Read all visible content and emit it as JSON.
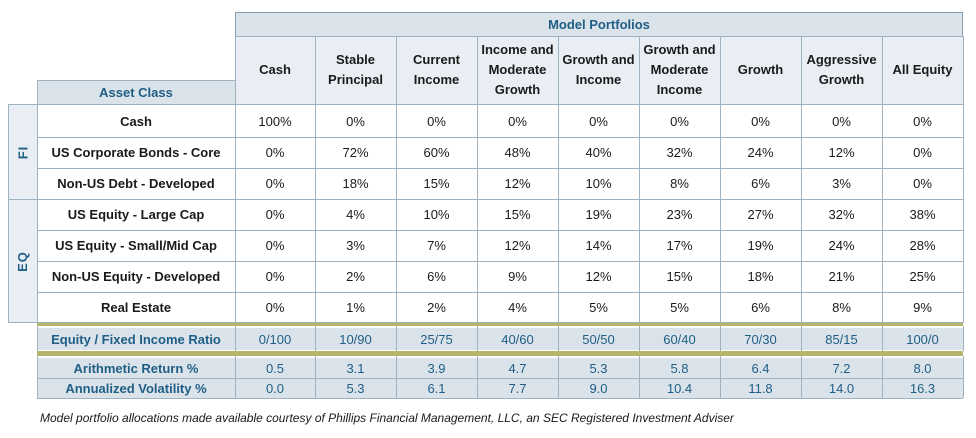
{
  "header": {
    "model_portfolios": "Model Portfolios",
    "asset_class": "Asset Class",
    "columns": [
      [
        "Cash"
      ],
      [
        "Stable",
        "Principal"
      ],
      [
        "Current",
        "Income"
      ],
      [
        "Income and",
        "Moderate",
        "Growth"
      ],
      [
        "Growth and",
        "Income"
      ],
      [
        "Growth and",
        "Moderate",
        "Income"
      ],
      [
        "Growth"
      ],
      [
        "Aggressive",
        "Growth"
      ],
      [
        "All Equity"
      ]
    ]
  },
  "groups": [
    {
      "label": "FI"
    },
    {
      "label": "EQ"
    }
  ],
  "rows": [
    {
      "label": "Cash",
      "values": [
        "100%",
        "0%",
        "0%",
        "0%",
        "0%",
        "0%",
        "0%",
        "0%",
        "0%"
      ]
    },
    {
      "label": "US Corporate Bonds - Core",
      "values": [
        "0%",
        "72%",
        "60%",
        "48%",
        "40%",
        "32%",
        "24%",
        "12%",
        "0%"
      ]
    },
    {
      "label": "Non-US Debt - Developed",
      "values": [
        "0%",
        "18%",
        "15%",
        "12%",
        "10%",
        "8%",
        "6%",
        "3%",
        "0%"
      ]
    },
    {
      "label": "US Equity - Large Cap",
      "values": [
        "0%",
        "4%",
        "10%",
        "15%",
        "19%",
        "23%",
        "27%",
        "32%",
        "38%"
      ]
    },
    {
      "label": "US Equity - Small/Mid Cap",
      "values": [
        "0%",
        "3%",
        "7%",
        "12%",
        "14%",
        "17%",
        "19%",
        "24%",
        "28%"
      ]
    },
    {
      "label": "Non-US Equity - Developed",
      "values": [
        "0%",
        "2%",
        "6%",
        "9%",
        "12%",
        "15%",
        "18%",
        "21%",
        "25%"
      ]
    },
    {
      "label": "Real Estate",
      "values": [
        "0%",
        "1%",
        "2%",
        "4%",
        "5%",
        "5%",
        "6%",
        "8%",
        "9%"
      ]
    }
  ],
  "summary": [
    {
      "label": "Equity / Fixed Income Ratio",
      "values": [
        "0/100",
        "10/90",
        "25/75",
        "40/60",
        "50/50",
        "60/40",
        "70/30",
        "85/15",
        "100/0"
      ]
    },
    {
      "label": "Arithmetic Return %",
      "values": [
        "0.5",
        "3.1",
        "3.9",
        "4.7",
        "5.3",
        "5.8",
        "6.4",
        "7.2",
        "8.0"
      ]
    },
    {
      "label": "Annualized Volatility %",
      "values": [
        "0.0",
        "5.3",
        "6.1",
        "7.7",
        "9.0",
        "10.4",
        "11.8",
        "14.0",
        "16.3"
      ]
    }
  ],
  "footnote": "Model portfolio allocations made available courtesy of Phillips Financial Management, LLC, an SEC Registered Investment Adviser",
  "colors": {
    "header_fill": "#dbe3ea",
    "accent_text": "#1f5e85",
    "olive_bar": "#b5b56a",
    "grid": "#9fb2c2"
  }
}
